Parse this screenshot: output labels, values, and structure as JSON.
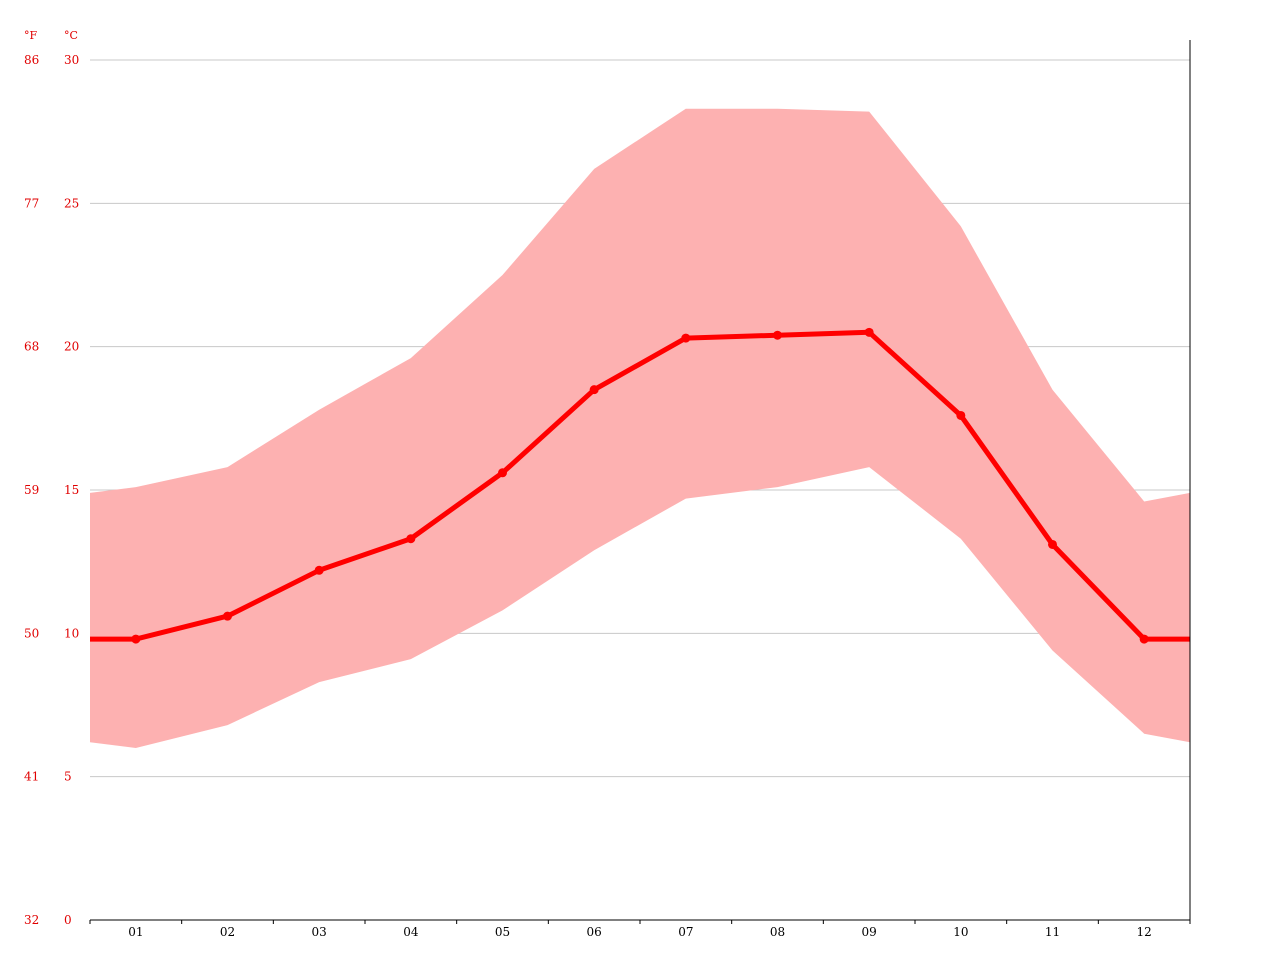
{
  "chart_data": {
    "type": "line",
    "title": "",
    "xlabel": "",
    "ylabel": "",
    "units": {
      "fahrenheit": "°F",
      "celsius": "°C"
    },
    "categories": [
      "01",
      "02",
      "03",
      "04",
      "05",
      "06",
      "07",
      "08",
      "09",
      "10",
      "11",
      "12"
    ],
    "ylim": [
      0,
      30
    ],
    "y_ticks_celsius": [
      "0",
      "5",
      "10",
      "15",
      "20",
      "25",
      "30"
    ],
    "y_ticks_fahrenheit": [
      "32",
      "41",
      "50",
      "59",
      "68",
      "77",
      "86"
    ],
    "grid": true,
    "series": [
      {
        "role": "average",
        "color": "#ff0000",
        "values": [
          9.8,
          10.6,
          12.2,
          13.3,
          15.6,
          18.5,
          20.3,
          20.4,
          20.5,
          17.6,
          13.1,
          9.8
        ]
      },
      {
        "role": "range",
        "color": "#fdb1b1",
        "max_values": [
          15.1,
          15.8,
          17.8,
          19.6,
          22.5,
          26.2,
          28.3,
          28.3,
          28.2,
          24.2,
          18.5,
          14.6
        ],
        "min_values": [
          6.0,
          6.8,
          8.3,
          9.1,
          10.8,
          12.9,
          14.7,
          15.1,
          15.8,
          13.3,
          9.4,
          6.5
        ]
      }
    ],
    "edge_values": {
      "average": [
        9.8,
        9.8
      ],
      "max": [
        14.9,
        14.9
      ],
      "min": [
        6.2,
        6.2
      ]
    }
  }
}
